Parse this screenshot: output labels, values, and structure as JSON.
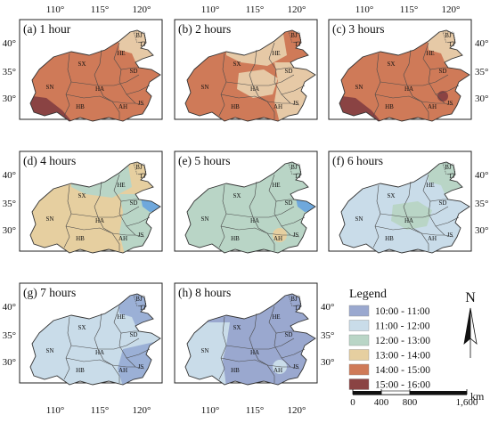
{
  "figure": {
    "panels": [
      {
        "label": "(a) 1 hour",
        "base": "#cf7a58",
        "patches": [
          {
            "shape": "ne-top",
            "color": "#e6c9a6"
          },
          {
            "shape": "sn-sw",
            "color": "#8a4343"
          }
        ]
      },
      {
        "label": "(b) 2 hours",
        "base": "#cf7a58",
        "patches": [
          {
            "shape": "north",
            "color": "#e6c9a6"
          },
          {
            "shape": "center",
            "color": "#e6c9a6"
          },
          {
            "shape": "east",
            "color": "#e6c9a6"
          }
        ]
      },
      {
        "label": "(c) 3 hours",
        "base": "#cf7a58",
        "patches": [
          {
            "shape": "sn-sw",
            "color": "#8a4343"
          },
          {
            "shape": "spot-js",
            "color": "#8a4343"
          },
          {
            "shape": "ne-top",
            "color": "#e6c9a6"
          }
        ]
      },
      {
        "label": "(d) 4 hours",
        "base": "#e6cfa0",
        "patches": [
          {
            "shape": "east",
            "color": "#b9d5c6"
          },
          {
            "shape": "north",
            "color": "#b9d5c6"
          },
          {
            "shape": "shandong-tip",
            "color": "#6fa8dc"
          }
        ]
      },
      {
        "label": "(e) 5 hours",
        "base": "#b9d5c6",
        "patches": [
          {
            "shape": "shandong-tip",
            "color": "#6fa8dc"
          },
          {
            "shape": "spot-ah",
            "color": "#e6cfa0"
          }
        ]
      },
      {
        "label": "(f) 6 hours",
        "base": "#c9dce9",
        "patches": [
          {
            "shape": "center",
            "color": "#b9d5c6"
          },
          {
            "shape": "ne-top",
            "color": "#b9d5c6"
          }
        ]
      },
      {
        "label": "(g) 7 hours",
        "base": "#c9dce9",
        "patches": [
          {
            "shape": "se",
            "color": "#9bb0d6"
          },
          {
            "shape": "ne-top",
            "color": "#9bb0d6"
          }
        ]
      },
      {
        "label": "(h) 8 hours",
        "base": "#9aa8cf",
        "patches": [
          {
            "shape": "sn-west",
            "color": "#c9dce9"
          },
          {
            "shape": "spot-ah",
            "color": "#c9dce9"
          }
        ]
      }
    ],
    "province_labels": [
      "BJ",
      "TJ",
      "HE",
      "SX",
      "SD",
      "SN",
      "HA",
      "HB",
      "AH",
      "JS"
    ],
    "lon_ticks": [
      "110°",
      "115°",
      "120°"
    ],
    "lat_ticks": [
      "40°",
      "35°",
      "30°"
    ],
    "legend": {
      "title": "Legend",
      "items": [
        {
          "label": "10:00 - 11:00",
          "color": "#9aa8cf"
        },
        {
          "label": "11:00 - 12:00",
          "color": "#c9dce9"
        },
        {
          "label": "12:00 - 13:00",
          "color": "#b9d5c6"
        },
        {
          "label": "13:00 - 14:00",
          "color": "#e6cfa0"
        },
        {
          "label": "14:00 - 15:00",
          "color": "#cf7a58"
        },
        {
          "label": "15:00 - 16:00",
          "color": "#8a4343"
        }
      ]
    },
    "north_arrow": "N",
    "scale_bar": {
      "ticks": [
        "0",
        "400",
        "800",
        "1,600"
      ],
      "unit": "km"
    },
    "colors": {
      "frame": "#222222",
      "boundary": "#4a4a4a",
      "outline": "#333333"
    }
  }
}
